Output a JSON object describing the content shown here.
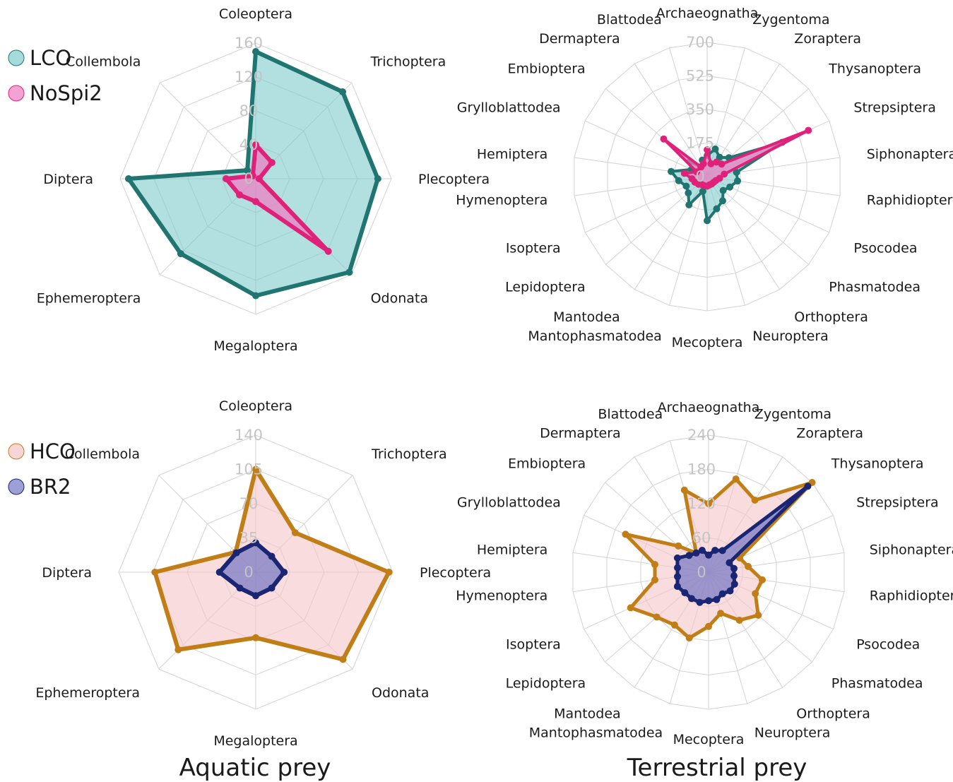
{
  "footer": {
    "aquatic": "Aquatic prey",
    "terrestrial": "Terrestrial prey"
  },
  "chart_data": [
    {
      "type": "radar",
      "panel": "top-left",
      "legend_placement": "top-left",
      "categories": [
        "Coleoptera",
        "Trichoptera",
        "Plecoptera",
        "Odonata",
        "Megaloptera",
        "Ephemeroptera",
        "Diptera",
        "Collembola"
      ],
      "ticks": [
        0,
        40,
        80,
        120,
        160
      ],
      "tick_labels": [
        "0",
        "40",
        "80",
        "120",
        "160"
      ],
      "ylim": [
        0,
        160
      ],
      "series": [
        {
          "name": "LCO",
          "color": "#217570",
          "fill": "#7fcccb",
          "values": [
            150,
            145,
            144,
            156,
            138,
            125,
            150,
            14
          ]
        },
        {
          "name": "NoSpi2",
          "color": "#e0217a",
          "fill": "#f07ac0",
          "values": [
            40,
            27,
            4,
            121,
            27,
            27,
            35,
            5
          ]
        }
      ]
    },
    {
      "type": "radar",
      "panel": "top-right",
      "categories": [
        "Archaeognatha",
        "Zygentoma",
        "Zoraptera",
        "Thysanoptera",
        "Strepsiptera",
        "Siphonaptera",
        "Raphidioptera",
        "Psocodea",
        "Phasmatodea",
        "Orthoptera",
        "Neuroptera",
        "Mecoptera",
        "Mantophasmatodea",
        "Mantodea",
        "Lepidoptera",
        "Isoptera",
        "Hymenoptera",
        "Hemiptera",
        "Grylloblattodea",
        "Embioptera",
        "Dermaptera",
        "Blattodea"
      ],
      "ticks": [
        0,
        175,
        350,
        525,
        700
      ],
      "tick_labels": [
        "0",
        "175",
        "350",
        "525",
        "700"
      ],
      "ylim": [
        0,
        700
      ],
      "series": [
        {
          "name": "LCO",
          "color": "#217570",
          "fill": "#7fcccb",
          "values": [
            110,
            150,
            120,
            150,
            430,
            155,
            160,
            130,
            110,
            150,
            175,
            230,
            80,
            175,
            130,
            120,
            150,
            190,
            90,
            120,
            60,
            90
          ]
        },
        {
          "name": "NoSpi2",
          "color": "#e0217a",
          "fill": "#f07ac0",
          "values": [
            140,
            70,
            90,
            100,
            580,
            90,
            65,
            50,
            45,
            45,
            45,
            50,
            50,
            50,
            60,
            70,
            80,
            120,
            60,
            300,
            60,
            70
          ]
        }
      ]
    },
    {
      "type": "radar",
      "panel": "bottom-left",
      "legend_placement": "top-left",
      "categories": [
        "Coleoptera",
        "Trichoptera",
        "Plecoptera",
        "Odonata",
        "Megaloptera",
        "Ephemeroptera",
        "Diptera",
        "Collembola"
      ],
      "ticks": [
        0,
        35,
        70,
        105,
        140
      ],
      "tick_labels": [
        "0",
        "35",
        "70",
        "105",
        "140"
      ],
      "ylim": [
        0,
        140
      ],
      "series": [
        {
          "name": "HCO",
          "color": "#c17e17",
          "fill": "#f5c4c7",
          "values": [
            105,
            57,
            136,
            126,
            67,
            112,
            103,
            29
          ]
        },
        {
          "name": "BR2",
          "color": "#1a2673",
          "fill": "#7476c4",
          "values": [
            30,
            23,
            29,
            23,
            24,
            23,
            37,
            28
          ]
        }
      ]
    },
    {
      "type": "radar",
      "panel": "bottom-right",
      "categories": [
        "Archaeognatha",
        "Zygentoma",
        "Zoraptera",
        "Thysanoptera",
        "Strepsiptera",
        "Siphonaptera",
        "Raphidioptera",
        "Psocodea",
        "Phasmatodea",
        "Orthoptera",
        "Neuroptera",
        "Mecoptera",
        "Mantophasmatodea",
        "Mantodea",
        "Lepidoptera",
        "Isoptera",
        "Hymenoptera",
        "Hemiptera",
        "Grylloblattodea",
        "Embioptera",
        "Dermaptera",
        "Blattodea"
      ],
      "ticks": [
        0,
        60,
        120,
        180,
        240
      ],
      "tick_labels": [
        "0",
        "60",
        "120",
        "180",
        "240"
      ],
      "ylim": [
        0,
        240
      ],
      "series": [
        {
          "name": "HCO",
          "color": "#c17e17",
          "fill": "#f5c4c7",
          "values": [
            120,
            170,
            150,
            240,
            60,
            70,
            95,
            90,
            115,
            100,
            75,
            95,
            120,
            110,
            120,
            150,
            95,
            95,
            160,
            70,
            40,
            150
          ]
        },
        {
          "name": "BR2",
          "color": "#1a2673",
          "fill": "#7476c4",
          "values": [
            30,
            40,
            45,
            230,
            40,
            45,
            45,
            50,
            50,
            45,
            50,
            50,
            55,
            55,
            55,
            60,
            55,
            55,
            60,
            45,
            40,
            40
          ]
        }
      ]
    }
  ]
}
